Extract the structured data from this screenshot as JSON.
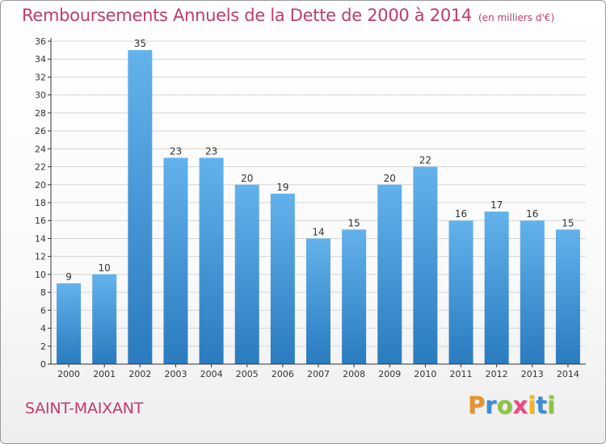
{
  "header": {
    "title": "Remboursements Annuels de la Dette de 2000 à 2014",
    "unit": "(en milliers d'€)"
  },
  "footer": {
    "town": "SAINT-MAIXANT",
    "logo": [
      "P",
      "r",
      "o",
      "x",
      "i",
      "t",
      "i"
    ],
    "logo_colors": [
      "#e8932a",
      "#3a8fd6",
      "#8cc63f",
      "#e84c8b",
      "#f2b51c",
      "#3a8fd6",
      "#8cc63f"
    ]
  },
  "colors": {
    "bar_top": "#63b2ec",
    "bar_bottom": "#2a7bbf",
    "grid": "#d6d6d6",
    "axis": "#333333",
    "title": "#c03b6e"
  },
  "chart_data": {
    "type": "bar",
    "title": "Remboursements Annuels de la Dette de 2000 à 2014",
    "xlabel": "",
    "ylabel": "en milliers d'€",
    "categories": [
      "2000",
      "2001",
      "2002",
      "2003",
      "2004",
      "2005",
      "2006",
      "2007",
      "2008",
      "2009",
      "2010",
      "2011",
      "2012",
      "2013",
      "2014"
    ],
    "values": [
      9,
      10,
      35,
      23,
      23,
      20,
      19,
      14,
      15,
      20,
      22,
      16,
      17,
      16,
      15
    ],
    "ylim": [
      0,
      36
    ],
    "yticks": [
      0,
      2,
      4,
      6,
      8,
      10,
      12,
      14,
      16,
      18,
      20,
      22,
      24,
      26,
      28,
      30,
      32,
      34,
      36
    ],
    "grid": true
  }
}
